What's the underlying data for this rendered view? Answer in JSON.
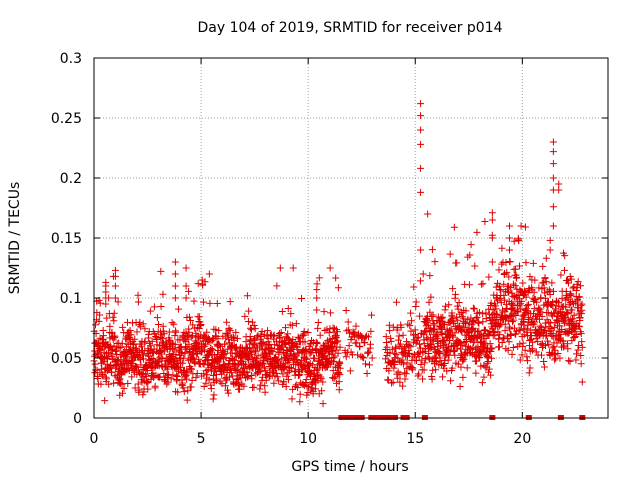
{
  "chart_data": {
    "type": "scatter",
    "title": "Day 104 of 2019, SRMTID for receiver p014",
    "xlabel": "GPS time / hours",
    "ylabel": "SRMTID / TECUs",
    "xlim": [
      0,
      24
    ],
    "ylim": [
      0,
      0.3
    ],
    "xticks": [
      0,
      5,
      10,
      15,
      20
    ],
    "xtick_labels": [
      "0",
      "5",
      "10",
      "15",
      "20"
    ],
    "yticks": [
      0,
      0.05,
      0.1,
      0.15,
      0.2,
      0.25,
      0.3
    ],
    "ytick_labels": [
      "0",
      "0.05",
      "0.1",
      "0.15",
      "0.2",
      "0.25",
      "0.3"
    ],
    "grid": true,
    "marker": "+",
    "color": "#e00000",
    "series": [
      {
        "name": "SRMTID",
        "segments": [
          {
            "x_start": 0.0,
            "x_end": 11.5,
            "points_per_hour": 120,
            "baseline": 0.052,
            "spread": 0.018,
            "low": 0.012,
            "high": 0.125
          },
          {
            "x_start": 11.7,
            "x_end": 13.0,
            "points_per_hour": 40,
            "baseline": 0.06,
            "spread": 0.015,
            "low": 0.03,
            "high": 0.1
          },
          {
            "x_start": 13.6,
            "x_end": 15.4,
            "points_per_hour": 70,
            "baseline": 0.055,
            "spread": 0.02,
            "low": 0.02,
            "high": 0.12
          },
          {
            "x_start": 15.4,
            "x_end": 18.6,
            "points_per_hour": 120,
            "baseline": 0.068,
            "spread": 0.02,
            "low": 0.025,
            "high": 0.17
          },
          {
            "x_start": 18.6,
            "x_end": 22.8,
            "points_per_hour": 120,
            "baseline": 0.085,
            "spread": 0.025,
            "low": 0.03,
            "high": 0.16
          }
        ],
        "peaks": [
          {
            "x": 0.55,
            "values": [
              0.095,
              0.1,
              0.105,
              0.11,
              0.113
            ]
          },
          {
            "x": 1.0,
            "values": [
              0.1,
              0.11,
              0.118,
              0.123
            ]
          },
          {
            "x": 3.8,
            "values": [
              0.1,
              0.11,
              0.12,
              0.13
            ]
          },
          {
            "x": 4.3,
            "values": [
              0.1,
              0.11,
              0.125
            ]
          },
          {
            "x": 10.4,
            "values": [
              0.09,
              0.1,
              0.107
            ]
          },
          {
            "x": 15.25,
            "values": [
              0.14,
              0.188,
              0.208,
              0.228,
              0.24,
              0.252,
              0.262
            ]
          },
          {
            "x": 18.6,
            "values": [
              0.13,
              0.15,
              0.165,
              0.171
            ]
          },
          {
            "x": 19.4,
            "values": [
              0.14,
              0.15,
              0.16
            ]
          },
          {
            "x": 21.45,
            "values": [
              0.16,
              0.176,
              0.19,
              0.2,
              0.212,
              0.222,
              0.23
            ]
          },
          {
            "x": 21.7,
            "values": [
              0.19,
              0.195
            ]
          },
          {
            "x": 21.3,
            "values": [
              0.14,
              0.148
            ]
          },
          {
            "x": 22.8,
            "values": [
              0.03
            ]
          }
        ],
        "zero_values_x": [
          11.55,
          11.7,
          11.85,
          12.05,
          12.3,
          12.5,
          12.95,
          13.1,
          13.25,
          13.4,
          13.55,
          13.7,
          13.85,
          14.05,
          14.45,
          14.6,
          15.45,
          18.6,
          20.3,
          21.8,
          22.8
        ]
      }
    ]
  }
}
